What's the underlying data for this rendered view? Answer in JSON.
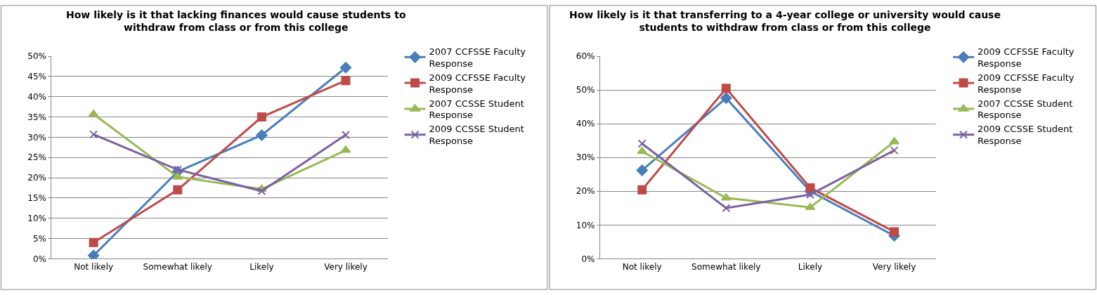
{
  "chart_data": [
    {
      "type": "line",
      "title": "How likely is it that lacking finances would cause students to withdraw from class or from this college",
      "categories": [
        "Not likely",
        "Somewhat likely",
        "Likely",
        "Very likely"
      ],
      "series": [
        {
          "name": "2007 CCFSSE Faculty Response",
          "color": "#4a7ebb",
          "marker": "diamond",
          "values": [
            0.8,
            21.5,
            30.5,
            47.2
          ]
        },
        {
          "name": "2009 CCFSSE Faculty Response",
          "color": "#be4b48",
          "marker": "square",
          "values": [
            4,
            17,
            35,
            44
          ]
        },
        {
          "name": "2007 CCSSE Student Response",
          "color": "#98b954",
          "marker": "triangle",
          "values": [
            35.7,
            20.2,
            17.2,
            26.8
          ]
        },
        {
          "name": "2009 CCSSE Student Response",
          "color": "#7d60a0",
          "marker": "cross",
          "values": [
            30.7,
            22,
            16.7,
            30.6
          ]
        }
      ],
      "ylim": [
        0,
        50
      ],
      "yticks": [
        {
          "value": 0,
          "label": "0%"
        },
        {
          "value": 5,
          "label": "5%"
        },
        {
          "value": 10,
          "label": "10%"
        },
        {
          "value": 15,
          "label": "15%"
        },
        {
          "value": 20,
          "label": "20%"
        },
        {
          "value": 25,
          "label": "25%"
        },
        {
          "value": 30,
          "label": "30%"
        },
        {
          "value": 35,
          "label": "35%"
        },
        {
          "value": 40,
          "label": "40%"
        },
        {
          "value": 45,
          "label": "45%"
        },
        {
          "value": 50,
          "label": "50%"
        }
      ],
      "grid": "y",
      "legend": "right",
      "line_style": "solid"
    },
    {
      "type": "line",
      "title": "How likely is it that transferring to a 4-year college or university would cause students to withdraw from class or from this college",
      "categories": [
        "Not likely",
        "Somewhat likely",
        "Likely",
        "Very likely"
      ],
      "series": [
        {
          "name": "2009 CCFSSE Faculty Response",
          "color": "#4a7ebb",
          "marker": "diamond",
          "values": [
            26.2,
            47.6,
            20,
            6.8
          ]
        },
        {
          "name": "2009 CCFSSE Faculty Response",
          "color": "#be4b48",
          "marker": "square",
          "values": [
            20.4,
            50.5,
            21,
            8
          ]
        },
        {
          "name": "2007 CCSSE Student Response",
          "color": "#98b954",
          "marker": "triangle",
          "values": [
            31.8,
            18,
            15.2,
            34.7
          ]
        },
        {
          "name": "2009 CCSSE Student Response",
          "color": "#7d60a0",
          "marker": "cross",
          "values": [
            34.1,
            15,
            19,
            32.1
          ]
        }
      ],
      "ylim": [
        0,
        60
      ],
      "yticks": [
        {
          "value": 0,
          "label": "0%"
        },
        {
          "value": 10,
          "label": "10%"
        },
        {
          "value": 20,
          "label": "20%"
        },
        {
          "value": 30,
          "label": "30%"
        },
        {
          "value": 40,
          "label": "40%"
        },
        {
          "value": 50,
          "label": "50%"
        },
        {
          "value": 60,
          "label": "60%"
        }
      ],
      "grid": "y",
      "legend": "right",
      "line_style": "solid"
    }
  ]
}
